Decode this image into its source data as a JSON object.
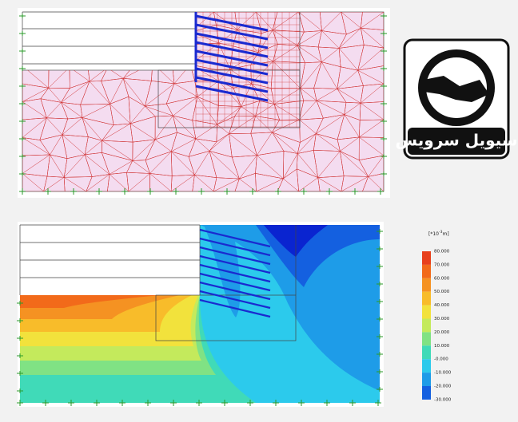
{
  "logo": {
    "text": "سیویل سرویس"
  },
  "legend": {
    "unit_prefix": "[*10",
    "unit_exp": "-3",
    "unit_suffix": "m]",
    "labels": [
      "80.000",
      "70.000",
      "60.000",
      "50.000",
      "40.000",
      "30.000",
      "20.000",
      "10.000",
      "-0.000",
      "-10.000",
      "-20.000",
      "-30.000"
    ],
    "colors": [
      "#e8401c",
      "#f26a1a",
      "#f59222",
      "#f8bc2a",
      "#f2e23c",
      "#c4ea5c",
      "#80e284",
      "#40dab8",
      "#2ccaec",
      "#1e9ce8",
      "#1460e0",
      "#0a24d0"
    ]
  }
}
